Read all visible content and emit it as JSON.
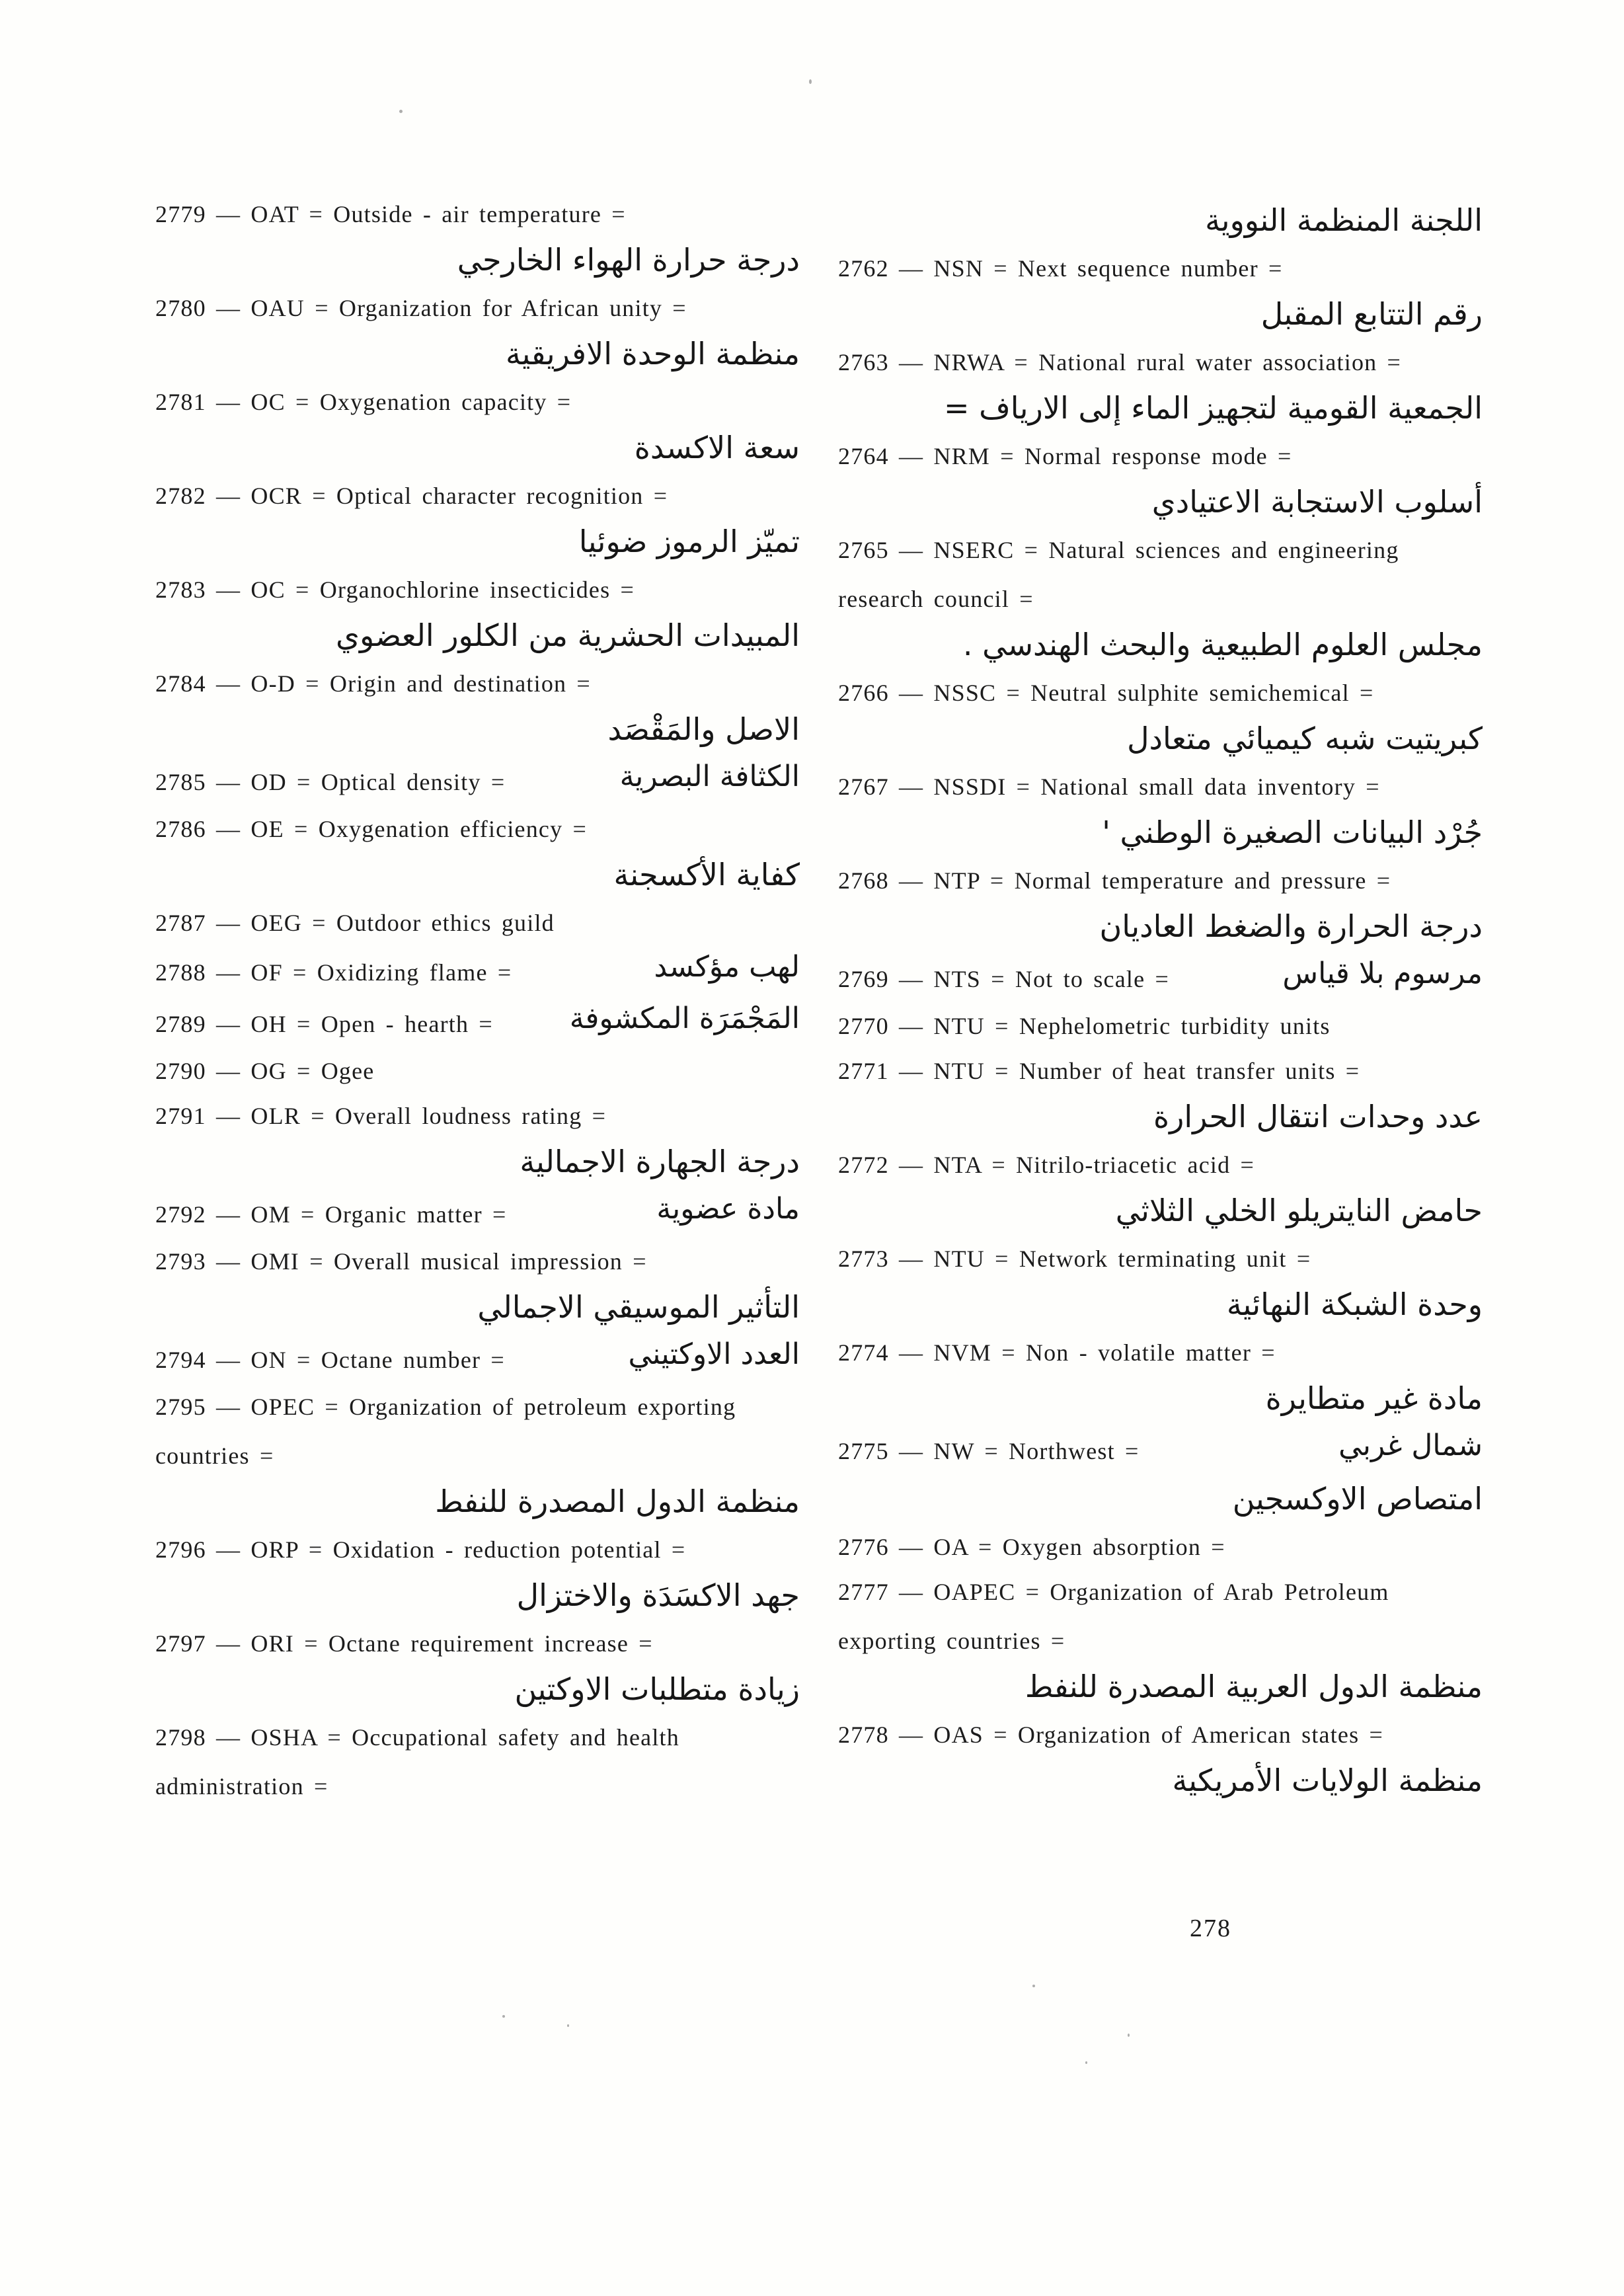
{
  "page": {
    "number": "278"
  },
  "columns": {
    "left": {
      "entries": [
        {
          "line1": "2779 — OAT = Outside - air temperature =",
          "arabic_block": "درجة حرارة الهواء الخارجي"
        },
        {
          "line1": "2780 — OAU = Organization for African unity =",
          "arabic_block": "منظمة الوحدة الافريقية"
        },
        {
          "line1": "2781 — OC = Oxygenation capacity =",
          "arabic_block": "سعة الاكسدة"
        },
        {
          "line1": "2782 — OCR = Optical character recognition =",
          "arabic_block": "تميّز الرموز ضوئيا"
        },
        {
          "line1": "2783 — OC = Organochlorine insecticides =",
          "arabic_block": "المبيدات الحشرية من الكلور العضوي"
        },
        {
          "line1": "2784 — O-D = Origin and destination =",
          "arabic_block": "الاصل والمَقْصَد"
        },
        {
          "line1": "2785 — OD = Optical density =",
          "arabic_inline": "الكثافة البصرية"
        },
        {
          "line1": "2786 — OE = Oxygenation efficiency =",
          "arabic_block": "كفاية الأكسجنة"
        },
        {
          "line1": "2787 — OEG = Outdoor ethics guild"
        },
        {
          "line1": "2788 — OF = Oxidizing flame =",
          "arabic_inline": "لهب مؤكسد"
        },
        {
          "line1": "2789 — OH = Open - hearth =",
          "arabic_inline": "المَجْمَرَة المكشوفة"
        },
        {
          "line1": "2790 — OG = Ogee"
        },
        {
          "line1": "2791 — OLR = Overall loudness rating =",
          "arabic_block": "درجة الجهارة الاجمالية"
        },
        {
          "line1": "2792 — OM = Organic matter =",
          "arabic_inline": "مادة عضوية"
        },
        {
          "line1": "2793 — OMI = Overall musical impression =",
          "arabic_block": "التأثير الموسيقي الاجمالي"
        },
        {
          "line1": "2794 — ON = Octane number =",
          "arabic_inline": "العدد الاوكتيني"
        },
        {
          "line1": "2795 — OPEC = Organization of petroleum exporting",
          "line2": "countries =",
          "arabic_block": "منظمة الدول المصدرة للنفط"
        },
        {
          "line1": "2796 — ORP = Oxidation - reduction potential =",
          "arabic_block": "جهد الاكسَدَة والاختزال"
        },
        {
          "line1": "2797 — ORI = Octane requirement increase =",
          "arabic_block": "زيادة متطلبات الاوكتين"
        },
        {
          "line1": "2798 — OSHA = Occupational safety and health",
          "line2": "administration ="
        }
      ]
    },
    "right": {
      "entries": [
        {
          "arabic_block": "اللجنة المنظمة النووية"
        },
        {
          "line1": "2762 — NSN = Next sequence number =",
          "arabic_block": "رقم التتابع المقبل"
        },
        {
          "line1": "2763 — NRWA = National rural water association =",
          "arabic_block": "الجمعية القومية لتجهيز الماء إلى الارياف ="
        },
        {
          "line1": "2764 — NRM = Normal response mode =",
          "arabic_block": "أسلوب الاستجابة الاعتيادي"
        },
        {
          "line1": "2765 — NSERC = Natural sciences and engineering",
          "line2": "research council =",
          "arabic_block": "مجلس العلوم الطبيعية والبحث الهندسي ."
        },
        {
          "line1": "2766 — NSSC = Neutral sulphite semichemical =",
          "arabic_block": "كبريتيت شبه كيميائي متعادل"
        },
        {
          "line1": "2767 — NSSDI = National small data inventory =",
          "arabic_block": "جُرْد البيانات الصغيرة الوطني '"
        },
        {
          "line1": "2768 — NTP = Normal temperature and pressure =",
          "arabic_block": "درجة الحرارة والضغط العاديان"
        },
        {
          "line1": "2769 — NTS = Not to scale =",
          "arabic_inline": "مرسوم بلا قياس"
        },
        {
          "line1": "2770 — NTU = Nephelometric turbidity units"
        },
        {
          "line1": "2771 — NTU = Number of heat transfer units =",
          "arabic_block": "عدد وحدات انتقال الحرارة"
        },
        {
          "line1": "2772 — NTA = Nitrilo-triacetic acid =",
          "arabic_block": "حامض النايتريلو الخلي الثلاثي"
        },
        {
          "line1": "2773 — NTU = Network terminating unit =",
          "arabic_block": "وحدة الشبكة النهائية"
        },
        {
          "line1": "2774 — NVM = Non - volatile matter =",
          "arabic_block": "مادة غير متطايرة"
        },
        {
          "line1": "2775 — NW = Northwest =",
          "arabic_inline": "شمال غربي",
          "arabic_block": "امتصاص الاوكسجين"
        },
        {
          "line1": "2776 — OA = Oxygen absorption ="
        },
        {
          "line1": "2777 — OAPEC = Organization of Arab Petroleum",
          "line2": "exporting countries =",
          "arabic_block": "منظمة الدول العربية المصدرة للنفط"
        },
        {
          "line1": "2778 — OAS = Organization of American states =",
          "arabic_block": "منظمة الولايات الأمريكية"
        }
      ]
    }
  }
}
